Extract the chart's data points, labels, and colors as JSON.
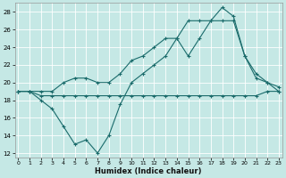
{
  "xlabel": "Humidex (Indice chaleur)",
  "background_color": "#c5e8e5",
  "grid_color": "#ffffff",
  "line_color": "#1a6b6b",
  "xlim": [
    -0.3,
    23.3
  ],
  "ylim": [
    11.5,
    29.0
  ],
  "yticks": [
    12,
    14,
    16,
    18,
    20,
    22,
    24,
    26,
    28
  ],
  "xticks": [
    0,
    1,
    2,
    3,
    4,
    5,
    6,
    7,
    8,
    9,
    10,
    11,
    12,
    13,
    14,
    15,
    16,
    17,
    18,
    19,
    20,
    21,
    22,
    23
  ],
  "line_flat_x": [
    0,
    1,
    2,
    3,
    4,
    5,
    6,
    7,
    8,
    9,
    10,
    11,
    12,
    13,
    14,
    15,
    16,
    17,
    18,
    19,
    20,
    21,
    22,
    23
  ],
  "line_flat_y": [
    19.0,
    19.0,
    18.5,
    18.5,
    18.5,
    18.5,
    18.5,
    18.5,
    18.5,
    18.5,
    18.5,
    18.5,
    18.5,
    18.5,
    18.5,
    18.5,
    18.5,
    18.5,
    18.5,
    18.5,
    18.5,
    18.5,
    19.0,
    19.0
  ],
  "line_vshape_x": [
    0,
    1,
    2,
    3,
    4,
    5,
    6,
    7,
    8,
    9,
    10,
    11,
    12,
    13,
    14,
    15,
    16,
    17,
    18,
    19,
    20,
    21,
    22,
    23
  ],
  "line_vshape_y": [
    19.0,
    19.0,
    18.0,
    17.0,
    15.0,
    13.0,
    13.5,
    12.0,
    14.0,
    17.5,
    20.0,
    21.0,
    22.0,
    23.0,
    25.0,
    23.0,
    25.0,
    27.0,
    27.0,
    27.0,
    23.0,
    20.5,
    20.0,
    19.0
  ],
  "line_rise_x": [
    0,
    1,
    2,
    3,
    4,
    5,
    6,
    7,
    8,
    9,
    10,
    11,
    12,
    13,
    14,
    15,
    16,
    17,
    18,
    19,
    20,
    21,
    22,
    23
  ],
  "line_rise_y": [
    19.0,
    19.0,
    19.0,
    19.0,
    20.0,
    20.5,
    20.5,
    20.0,
    20.0,
    21.0,
    22.5,
    23.0,
    24.0,
    25.0,
    25.0,
    27.0,
    27.0,
    27.0,
    28.5,
    27.5,
    23.0,
    21.0,
    20.0,
    19.5
  ],
  "figwidth": 3.2,
  "figheight": 2.0,
  "dpi": 100
}
